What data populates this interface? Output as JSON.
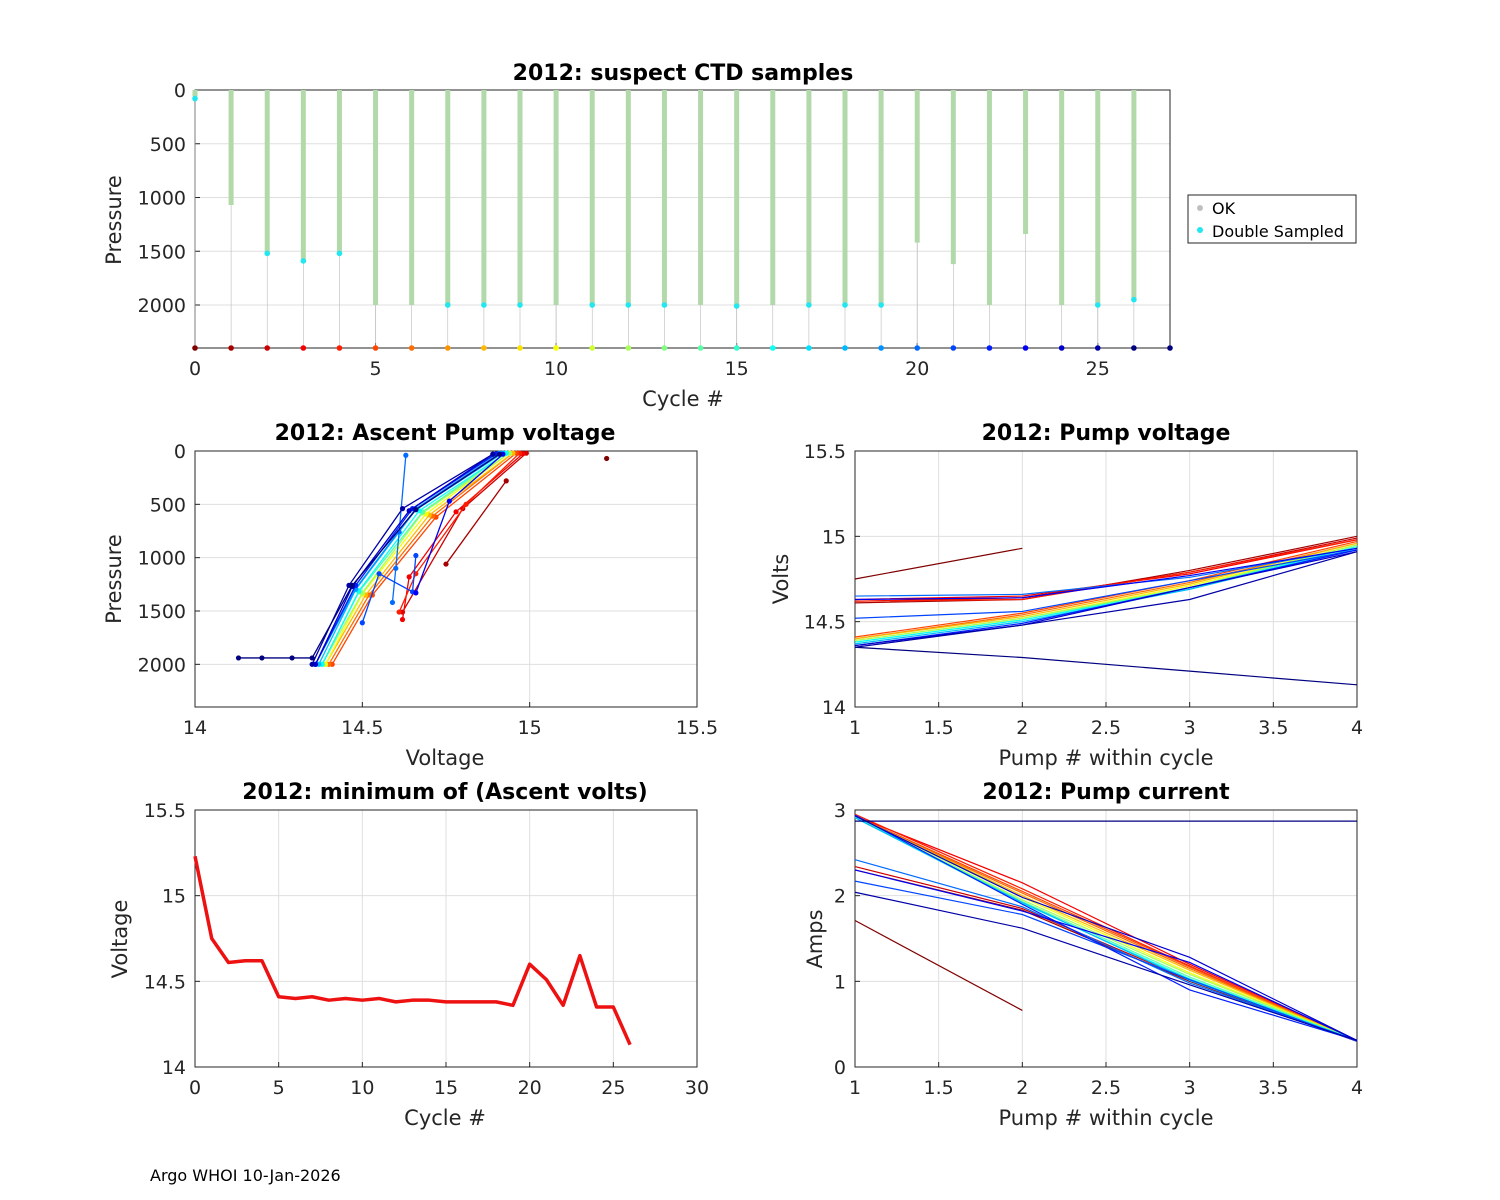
{
  "footer": "Argo WHOI 10-Jan-2026",
  "colors": {
    "ok": "#b2d9aa",
    "double_sampled": "#22e6f0",
    "min_line": "#ee1111",
    "legend_ok_marker": "#c0c0c0"
  },
  "chart_data": [
    {
      "id": "suspect",
      "type": "scatter",
      "title": "2012: suspect CTD samples",
      "xlabel": "Cycle #",
      "ylabel": "Pressure",
      "xlim": [
        0,
        27
      ],
      "ylim": [
        2400,
        0
      ],
      "y_reversed": true,
      "xticks": [
        0,
        5,
        10,
        15,
        20,
        25
      ],
      "yticks": [
        0,
        500,
        1000,
        1500,
        2000
      ],
      "bottom_marker_pressure": 2400,
      "cycles": [
        0,
        1,
        2,
        3,
        4,
        5,
        6,
        7,
        8,
        9,
        10,
        11,
        12,
        13,
        14,
        15,
        16,
        17,
        18,
        19,
        20,
        21,
        22,
        23,
        24,
        25,
        26,
        27
      ],
      "profile_max_pressure": [
        60,
        1070,
        1520,
        1590,
        1520,
        2000,
        2000,
        2000,
        2000,
        2000,
        2000,
        2000,
        2000,
        2000,
        2000,
        2010,
        2000,
        2000,
        2000,
        2000,
        1420,
        1620,
        2000,
        1340,
        2000,
        2000,
        1950,
        null
      ],
      "double_sampled_pressures": [
        [
          80
        ],
        [],
        [
          1520
        ],
        [
          1590
        ],
        [
          1520
        ],
        [],
        [],
        [
          2000
        ],
        [
          2000
        ],
        [
          2000
        ],
        [],
        [
          2000
        ],
        [
          2000
        ],
        [
          2000
        ],
        [],
        [
          2010
        ],
        [],
        [
          2000
        ],
        [
          2000
        ],
        [
          2000
        ],
        [],
        [],
        [],
        [],
        [],
        [
          2000
        ],
        [
          1950
        ],
        []
      ],
      "legend": {
        "location": "east-outside",
        "entries": [
          "OK",
          "Double Sampled"
        ]
      }
    },
    {
      "id": "ascent",
      "type": "line",
      "title": "2012: Ascent Pump voltage",
      "xlabel": "Voltage",
      "ylabel": "Pressure",
      "xlim": [
        14,
        15.5
      ],
      "ylim": [
        2400,
        0
      ],
      "y_reversed": true,
      "xticks": [
        14,
        14.5,
        15,
        15.5
      ],
      "yticks": [
        0,
        500,
        1000,
        1500,
        2000
      ],
      "series": [
        {
          "cycle": 0,
          "voltage": [
            15.23
          ],
          "pressure": [
            70
          ]
        },
        {
          "cycle": 1,
          "voltage": [
            14.75,
            14.93
          ],
          "pressure": [
            1060,
            280
          ]
        },
        {
          "cycle": 2,
          "voltage": [
            14.62,
            14.8,
            14.99
          ],
          "pressure": [
            1510,
            540,
            20
          ]
        },
        {
          "cycle": 3,
          "voltage": [
            14.62,
            14.64,
            14.78,
            14.98
          ],
          "pressure": [
            1580,
            1180,
            570,
            25
          ]
        },
        {
          "cycle": 4,
          "voltage": [
            14.61,
            14.66,
            14.81,
            14.97
          ],
          "pressure": [
            1510,
            1150,
            500,
            20
          ]
        },
        {
          "cycle": 5,
          "voltage": [
            14.41,
            14.53,
            14.72,
            14.96
          ],
          "pressure": [
            2000,
            1350,
            620,
            20
          ]
        },
        {
          "cycle": 6,
          "voltage": [
            14.4,
            14.52,
            14.71,
            14.95
          ],
          "pressure": [
            2000,
            1350,
            610,
            20
          ]
        },
        {
          "cycle": 8,
          "voltage": [
            14.39,
            14.51,
            14.7,
            14.95
          ],
          "pressure": [
            2000,
            1350,
            600,
            20
          ]
        },
        {
          "cycle": 10,
          "voltage": [
            14.39,
            14.5,
            14.69,
            14.94
          ],
          "pressure": [
            2000,
            1340,
            590,
            20
          ]
        },
        {
          "cycle": 12,
          "voltage": [
            14.38,
            14.5,
            14.68,
            14.94
          ],
          "pressure": [
            2000,
            1330,
            580,
            20
          ]
        },
        {
          "cycle": 14,
          "voltage": [
            14.38,
            14.49,
            14.68,
            14.93
          ],
          "pressure": [
            2000,
            1320,
            570,
            20
          ]
        },
        {
          "cycle": 16,
          "voltage": [
            14.38,
            14.49,
            14.67,
            14.93
          ],
          "pressure": [
            2000,
            1310,
            560,
            20
          ]
        },
        {
          "cycle": 18,
          "voltage": [
            14.37,
            14.48,
            14.66,
            14.92
          ],
          "pressure": [
            2000,
            1300,
            550,
            20
          ]
        },
        {
          "cycle": 19,
          "voltage": [
            14.36,
            14.48,
            14.66,
            14.91
          ],
          "pressure": [
            2000,
            1290,
            540,
            20
          ]
        },
        {
          "cycle": 20,
          "voltage": [
            14.59,
            14.6,
            14.61,
            14.63
          ],
          "pressure": [
            1420,
            1100,
            760,
            40
          ]
        },
        {
          "cycle": 21,
          "voltage": [
            14.5,
            14.55,
            14.65,
            14.66
          ],
          "pressure": [
            1610,
            1150,
            1320,
            980
          ]
        },
        {
          "cycle": 22,
          "voltage": [
            14.36,
            14.48,
            14.65,
            14.9
          ],
          "pressure": [
            2000,
            1260,
            540,
            25
          ]
        },
        {
          "cycle": 23,
          "voltage": [
            14.66,
            14.76,
            14.92
          ],
          "pressure": [
            1330,
            470,
            30
          ]
        },
        {
          "cycle": 24,
          "voltage": [
            14.36,
            14.47,
            14.64,
            14.89
          ],
          "pressure": [
            2000,
            1270,
            560,
            30
          ]
        },
        {
          "cycle": 25,
          "voltage": [
            14.35,
            14.46,
            14.62,
            14.89
          ],
          "pressure": [
            2000,
            1260,
            540,
            30
          ]
        },
        {
          "cycle": 26,
          "voltage": [
            14.13,
            14.2,
            14.29,
            14.35,
            14.47,
            14.66,
            14.91
          ],
          "pressure": [
            1940,
            1940,
            1940,
            1940,
            1260,
            550,
            30
          ]
        }
      ]
    },
    {
      "id": "pumpv",
      "type": "line",
      "title": "2012: Pump voltage",
      "xlabel": "Pump # within cycle",
      "ylabel": "Volts",
      "xlim": [
        1,
        4
      ],
      "ylim": [
        14,
        15.5
      ],
      "xticks": [
        1,
        1.5,
        2,
        2.5,
        3,
        3.5,
        4
      ],
      "xtick_labels": [
        "1",
        "1.5",
        "2",
        "2.5",
        "3",
        "3.5",
        "4"
      ],
      "yticks": [
        14,
        14.5,
        15,
        15.5
      ],
      "series": [
        {
          "cycle": 0,
          "x": [
            1,
            2
          ],
          "y": [
            14.75,
            14.93
          ]
        },
        {
          "cycle": 1,
          "x": [
            1,
            2,
            3,
            4
          ],
          "y": [
            14.61,
            14.63,
            14.8,
            15.0
          ]
        },
        {
          "cycle": 2,
          "x": [
            1,
            2,
            3,
            4
          ],
          "y": [
            14.62,
            14.64,
            14.79,
            14.99
          ]
        },
        {
          "cycle": 3,
          "x": [
            1,
            2,
            3,
            4
          ],
          "y": [
            14.63,
            14.65,
            14.78,
            14.98
          ]
        },
        {
          "cycle": 4,
          "x": [
            1,
            2,
            3,
            4
          ],
          "y": [
            14.62,
            14.63,
            14.79,
            14.98
          ]
        },
        {
          "cycle": 5,
          "x": [
            1,
            2,
            3,
            4
          ],
          "y": [
            14.41,
            14.55,
            14.74,
            14.97
          ]
        },
        {
          "cycle": 6,
          "x": [
            1,
            2,
            3,
            4
          ],
          "y": [
            14.4,
            14.54,
            14.73,
            14.96
          ]
        },
        {
          "cycle": 8,
          "x": [
            1,
            2,
            3,
            4
          ],
          "y": [
            14.4,
            14.53,
            14.72,
            14.96
          ]
        },
        {
          "cycle": 10,
          "x": [
            1,
            2,
            3,
            4
          ],
          "y": [
            14.39,
            14.52,
            14.71,
            14.95
          ]
        },
        {
          "cycle": 12,
          "x": [
            1,
            2,
            3,
            4
          ],
          "y": [
            14.39,
            14.52,
            14.7,
            14.95
          ]
        },
        {
          "cycle": 14,
          "x": [
            1,
            2,
            3,
            4
          ],
          "y": [
            14.38,
            14.51,
            14.7,
            14.94
          ]
        },
        {
          "cycle": 16,
          "x": [
            1,
            2,
            3,
            4
          ],
          "y": [
            14.38,
            14.51,
            14.69,
            14.94
          ]
        },
        {
          "cycle": 18,
          "x": [
            1,
            2,
            3,
            4
          ],
          "y": [
            14.37,
            14.5,
            14.69,
            14.93
          ]
        },
        {
          "cycle": 20,
          "x": [
            1,
            2,
            3,
            4
          ],
          "y": [
            14.65,
            14.66,
            14.76,
            14.93
          ]
        },
        {
          "cycle": 21,
          "x": [
            1,
            2,
            3,
            4
          ],
          "y": [
            14.52,
            14.56,
            14.74,
            14.92
          ]
        },
        {
          "cycle": 22,
          "x": [
            1,
            2,
            3,
            4
          ],
          "y": [
            14.36,
            14.49,
            14.7,
            14.92
          ]
        },
        {
          "cycle": 23,
          "x": [
            1,
            2,
            3,
            4
          ],
          "y": [
            14.63,
            14.64,
            14.77,
            14.93
          ]
        },
        {
          "cycle": 24,
          "x": [
            1,
            2,
            3,
            4
          ],
          "y": [
            14.36,
            14.48,
            14.7,
            14.91
          ]
        },
        {
          "cycle": 25,
          "x": [
            1,
            2,
            3,
            4
          ],
          "y": [
            14.35,
            14.48,
            14.63,
            14.91
          ]
        },
        {
          "cycle": 26,
          "x": [
            1,
            2,
            3,
            4
          ],
          "y": [
            14.35,
            14.29,
            14.21,
            14.13
          ]
        }
      ]
    },
    {
      "id": "minv",
      "type": "line",
      "title": "2012: minimum of (Ascent volts)",
      "xlabel": "Cycle #",
      "ylabel": "Voltage",
      "xlim": [
        0,
        30
      ],
      "ylim": [
        14,
        15.5
      ],
      "xticks": [
        0,
        5,
        10,
        15,
        20,
        25,
        30
      ],
      "yticks": [
        14,
        14.5,
        15,
        15.5
      ],
      "x": [
        0,
        1,
        2,
        3,
        4,
        5,
        6,
        7,
        8,
        9,
        10,
        11,
        12,
        13,
        14,
        15,
        16,
        17,
        18,
        19,
        20,
        21,
        22,
        23,
        24,
        25,
        26
      ],
      "y": [
        15.23,
        14.75,
        14.61,
        14.62,
        14.62,
        14.41,
        14.4,
        14.41,
        14.39,
        14.4,
        14.39,
        14.4,
        14.38,
        14.39,
        14.39,
        14.38,
        14.38,
        14.38,
        14.38,
        14.36,
        14.6,
        14.51,
        14.36,
        14.65,
        14.35,
        14.35,
        14.13
      ]
    },
    {
      "id": "pumpc",
      "type": "line",
      "title": "2012: Pump current",
      "xlabel": "Pump # within cycle",
      "ylabel": "Amps",
      "xlim": [
        1,
        4
      ],
      "ylim": [
        0,
        3
      ],
      "xticks": [
        1,
        1.5,
        2,
        2.5,
        3,
        3.5,
        4
      ],
      "xtick_labels": [
        "1",
        "1.5",
        "2",
        "2.5",
        "3",
        "3.5",
        "4"
      ],
      "yticks": [
        0,
        1,
        2,
        3
      ],
      "series": [
        {
          "cycle": 0,
          "x": [
            1,
            2
          ],
          "y": [
            1.71,
            0.66
          ]
        },
        {
          "cycle": 1,
          "x": [
            1,
            2,
            3,
            4
          ],
          "y": [
            2.3,
            1.83,
            1.0,
            0.3
          ]
        },
        {
          "cycle": 2,
          "x": [
            1,
            2,
            3,
            4
          ],
          "y": [
            2.34,
            1.85,
            1.02,
            0.3
          ]
        },
        {
          "cycle": 3,
          "x": [
            1,
            2,
            3,
            4
          ],
          "y": [
            2.93,
            2.15,
            1.2,
            0.31
          ]
        },
        {
          "cycle": 4,
          "x": [
            1,
            2,
            3,
            4
          ],
          "y": [
            2.95,
            2.08,
            1.18,
            0.3
          ]
        },
        {
          "cycle": 5,
          "x": [
            1,
            2,
            3,
            4
          ],
          "y": [
            2.93,
            2.05,
            1.17,
            0.31
          ]
        },
        {
          "cycle": 6,
          "x": [
            1,
            2,
            3,
            4
          ],
          "y": [
            2.92,
            2.03,
            1.15,
            0.31
          ]
        },
        {
          "cycle": 8,
          "x": [
            1,
            2,
            3,
            4
          ],
          "y": [
            2.93,
            2.0,
            1.13,
            0.31
          ]
        },
        {
          "cycle": 10,
          "x": [
            1,
            2,
            3,
            4
          ],
          "y": [
            2.92,
            1.98,
            1.1,
            0.31
          ]
        },
        {
          "cycle": 12,
          "x": [
            1,
            2,
            3,
            4
          ],
          "y": [
            2.91,
            1.95,
            1.08,
            0.31
          ]
        },
        {
          "cycle": 14,
          "x": [
            1,
            2,
            3,
            4
          ],
          "y": [
            2.92,
            1.93,
            1.05,
            0.31
          ]
        },
        {
          "cycle": 16,
          "x": [
            1,
            2,
            3,
            4
          ],
          "y": [
            2.91,
            1.91,
            1.03,
            0.31
          ]
        },
        {
          "cycle": 18,
          "x": [
            1,
            2,
            3,
            4
          ],
          "y": [
            2.91,
            1.92,
            1.01,
            0.31
          ]
        },
        {
          "cycle": 20,
          "x": [
            1,
            2,
            3,
            4
          ],
          "y": [
            2.42,
            1.87,
            0.98,
            0.31
          ]
        },
        {
          "cycle": 21,
          "x": [
            1,
            2,
            3,
            4
          ],
          "y": [
            2.17,
            1.78,
            1.02,
            0.3
          ]
        },
        {
          "cycle": 22,
          "x": [
            1,
            2,
            3,
            4
          ],
          "y": [
            2.94,
            1.9,
            0.9,
            0.31
          ]
        },
        {
          "cycle": 23,
          "x": [
            1,
            2,
            3,
            4
          ],
          "y": [
            2.3,
            1.82,
            1.22,
            0.31
          ]
        },
        {
          "cycle": 24,
          "x": [
            1,
            2,
            3,
            4
          ],
          "y": [
            2.93,
            1.98,
            1.28,
            0.31
          ]
        },
        {
          "cycle": 25,
          "x": [
            1,
            2,
            3,
            4
          ],
          "y": [
            2.04,
            1.62,
            0.96,
            0.31
          ]
        },
        {
          "cycle": 26,
          "x": [
            1,
            4
          ],
          "y": [
            2.87,
            2.87
          ]
        }
      ]
    }
  ]
}
